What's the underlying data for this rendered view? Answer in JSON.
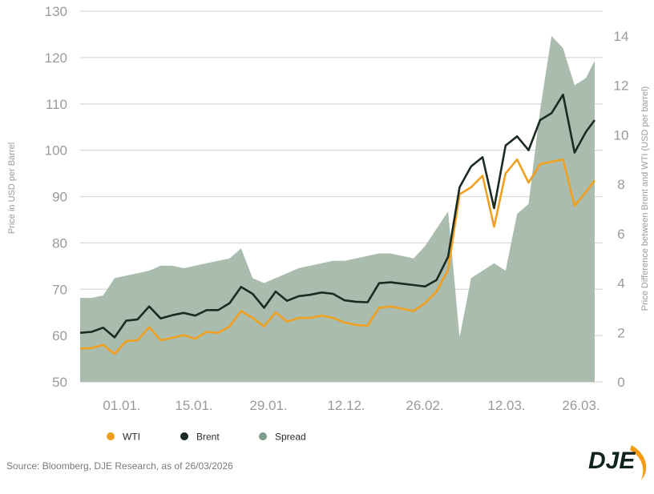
{
  "chart_data": {
    "type": "line",
    "x_tick_labels": [
      "01.01.",
      "15.01.",
      "29.01.",
      "12.12.",
      "26.02.",
      "12.03.",
      "26.03."
    ],
    "yleft_label": "Price in USD per Barrel",
    "yright_label": "Price Difference between Brent and WTI (USD per barrel)",
    "yleft_ticks": [
      "50",
      "60",
      "70",
      "80",
      "90",
      "100",
      "110",
      "120",
      "130"
    ],
    "yright_ticks": [
      "0",
      "2",
      "4",
      "6",
      "8",
      "10",
      "12",
      "14"
    ],
    "yleft_lim": [
      50,
      130
    ],
    "yright_lim": [
      0,
      15
    ],
    "grid": "horizontal",
    "legend_position": "bottom",
    "x": [
      0,
      2,
      4,
      6,
      8,
      10,
      12,
      14,
      16,
      18,
      20,
      22,
      24,
      26,
      28,
      30,
      32,
      34,
      36,
      38,
      40,
      42,
      44,
      46,
      48,
      50,
      52,
      54,
      56,
      58,
      60,
      62,
      64,
      66,
      68,
      70,
      72,
      74,
      76,
      78,
      80,
      82,
      84,
      86,
      88,
      89.5
    ],
    "series": [
      {
        "name": "WTI",
        "color": "#f0a020",
        "values": [
          57.2,
          57.3,
          58.0,
          56.0,
          58.8,
          59.0,
          61.8,
          59.0,
          59.5,
          60.1,
          59.3,
          60.8,
          60.6,
          62.0,
          65.3,
          63.8,
          62.0,
          65.0,
          63.0,
          63.8,
          63.8,
          64.3,
          63.8,
          62.8,
          62.3,
          62.1,
          66.0,
          66.3,
          65.8,
          65.3,
          67.0,
          69.5,
          74.2,
          90.5,
          92.0,
          94.5,
          83.5,
          95.0,
          98.0,
          93.0,
          97.0,
          97.5,
          98.0,
          88.0,
          91.0,
          93.5
        ],
        "type": "line"
      },
      {
        "name": "Brent",
        "color": "#1b2b24",
        "values": [
          60.6,
          60.8,
          61.7,
          59.6,
          63.2,
          63.5,
          66.3,
          63.7,
          64.4,
          64.9,
          64.3,
          65.5,
          65.5,
          67.0,
          70.5,
          69.0,
          66.0,
          69.5,
          67.5,
          68.5,
          68.8,
          69.3,
          69.0,
          67.6,
          67.3,
          67.2,
          71.3,
          71.5,
          71.2,
          70.9,
          70.6,
          72.0,
          77.0,
          92.0,
          96.5,
          98.5,
          87.5,
          101.0,
          103.0,
          100.0,
          106.5,
          108.0,
          112.0,
          99.5,
          104.0,
          106.5
        ],
        "type": "line"
      },
      {
        "name": "Spread",
        "color": "#7f9d8b",
        "values": [
          3.4,
          3.4,
          3.5,
          4.2,
          4.3,
          4.4,
          4.5,
          4.7,
          4.7,
          4.6,
          4.7,
          4.8,
          4.9,
          5.0,
          5.4,
          4.2,
          4.0,
          4.2,
          4.4,
          4.6,
          4.7,
          4.8,
          4.9,
          4.9,
          5.0,
          5.1,
          5.2,
          5.2,
          5.1,
          5.0,
          5.5,
          6.2,
          6.9,
          1.8,
          4.2,
          4.5,
          4.8,
          4.5,
          6.8,
          7.2,
          11.0,
          14.0,
          13.5,
          12.0,
          12.3,
          13.0
        ],
        "type": "area",
        "axis": "right"
      }
    ]
  },
  "legend": [
    {
      "label": "WTI",
      "color": "#f0a020"
    },
    {
      "label": "Brent",
      "color": "#1b2b24"
    },
    {
      "label": "Spread",
      "color": "#7f9d8b"
    }
  ],
  "footer": {
    "source": "Source: Bloomberg, DJE Research, as of 26/03/2026",
    "logo_text": "DJE"
  },
  "colors": {
    "grid": "#d9d9d9",
    "spread_fill": "#a9bcae",
    "logo_orange": "#f39c12",
    "logo_dark": "#10231c"
  }
}
